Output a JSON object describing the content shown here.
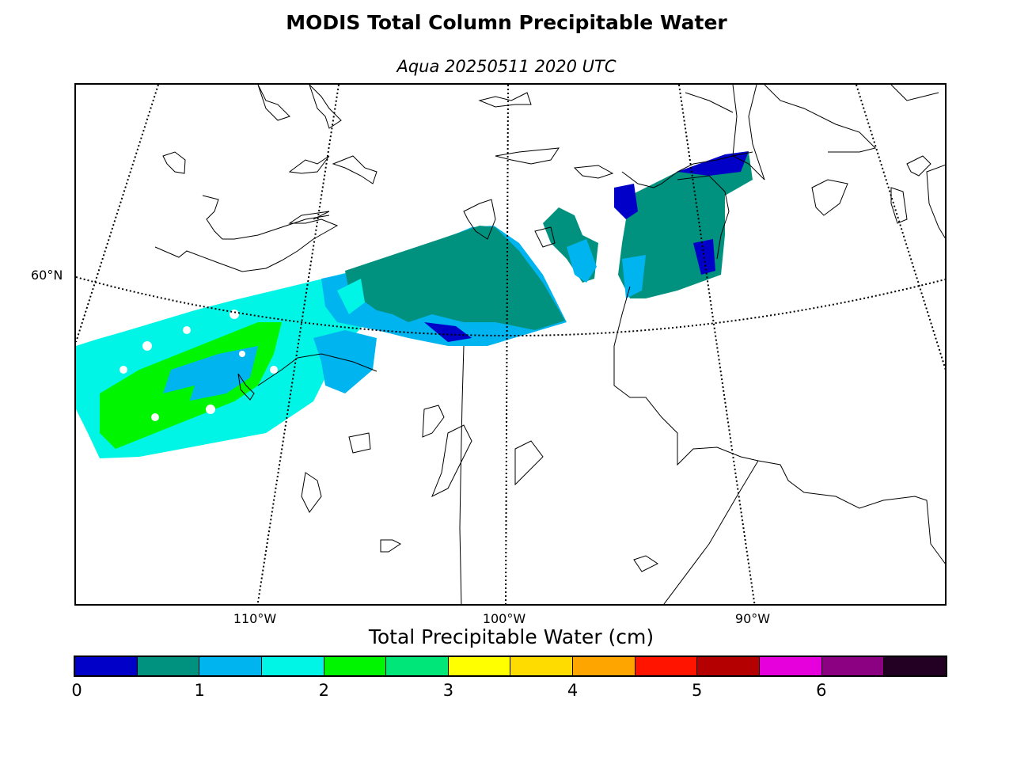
{
  "title": "MODIS Total Column Precipitable Water",
  "subtitle": "Aqua 20250511 2020 UTC",
  "map": {
    "lat_labels": [
      "60°N"
    ],
    "lon_labels": [
      "110°W",
      "100°W",
      "90°W"
    ],
    "colors": {
      "dark_teal": "#00917f",
      "sky_blue": "#00b4f0",
      "cyan": "#00f5e6",
      "green": "#00f500",
      "deep_blue": "#0000c8"
    }
  },
  "colorbar": {
    "title": "Total Precipitable Water (cm)",
    "ticks": [
      "0",
      "1",
      "2",
      "3",
      "4",
      "5",
      "6"
    ],
    "range": [
      0,
      7
    ],
    "step": 0.5,
    "colors": [
      "#0000c8",
      "#00917f",
      "#00b4f0",
      "#00f5e6",
      "#00f500",
      "#00e678",
      "#ffff00",
      "#ffdc00",
      "#ffa500",
      "#ff1400",
      "#b40000",
      "#e600dc",
      "#8c0082",
      "#230023"
    ]
  }
}
